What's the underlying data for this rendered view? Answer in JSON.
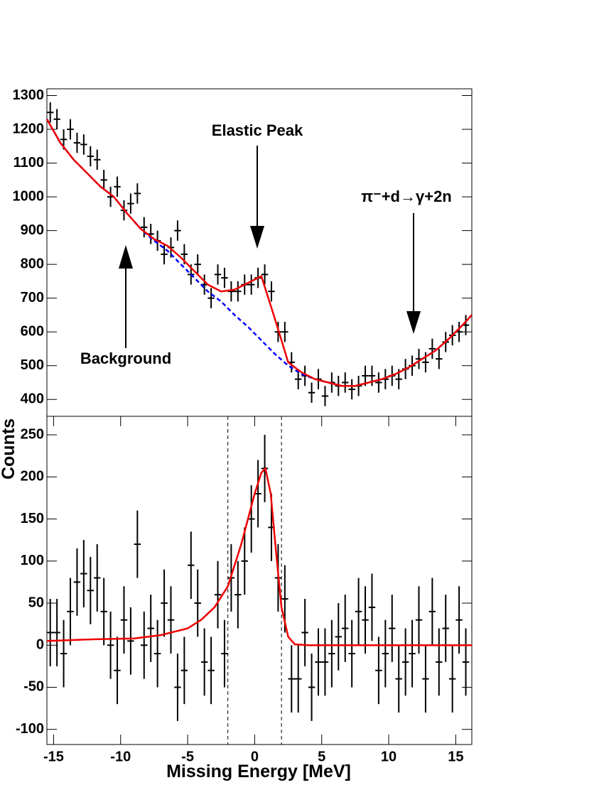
{
  "chart_data": [
    {
      "type": "scatter",
      "xlim": [
        -15.5,
        16.2
      ],
      "ylim": [
        350,
        1320
      ],
      "yticks": [
        400,
        500,
        600,
        700,
        800,
        900,
        1000,
        1100,
        1200,
        1300
      ],
      "x": [
        -15.25,
        -14.75,
        -14.25,
        -13.75,
        -13.25,
        -12.75,
        -12.25,
        -11.75,
        -11.25,
        -10.75,
        -10.25,
        -9.75,
        -9.25,
        -8.75,
        -8.25,
        -7.75,
        -7.25,
        -6.75,
        -6.25,
        -5.75,
        -5.25,
        -4.75,
        -4.25,
        -3.75,
        -3.25,
        -2.75,
        -2.25,
        -1.75,
        -1.25,
        -0.75,
        -0.25,
        0.25,
        0.75,
        1.25,
        1.75,
        2.25,
        2.75,
        3.25,
        3.75,
        4.25,
        4.75,
        5.25,
        5.75,
        6.25,
        6.75,
        7.25,
        7.75,
        8.25,
        8.75,
        9.25,
        9.75,
        10.25,
        10.75,
        11.25,
        11.75,
        12.25,
        12.75,
        13.25,
        13.75,
        14.25,
        14.75,
        15.25,
        15.75
      ],
      "values": [
        1250,
        1230,
        1170,
        1200,
        1160,
        1155,
        1120,
        1110,
        1050,
        1000,
        1030,
        960,
        980,
        1010,
        910,
        890,
        870,
        830,
        850,
        900,
        830,
        770,
        800,
        740,
        700,
        770,
        760,
        720,
        720,
        740,
        740,
        760,
        770,
        720,
        600,
        600,
        510,
        460,
        470,
        420,
        460,
        410,
        450,
        440,
        450,
        430,
        440,
        470,
        470,
        450,
        460,
        470,
        460,
        490,
        500,
        520,
        510,
        550,
        520,
        570,
        590,
        600,
        620
      ],
      "error": 30,
      "color": "#000000",
      "curves": [
        {
          "color": "#0000ff",
          "dashed": true,
          "x": [
            -15.5,
            -14.5,
            -13.5,
            -12.5,
            -11.5,
            -10.5,
            -9.5,
            -8.5,
            -7.5,
            -6.5,
            -5.5,
            -4.5,
            -3.5,
            -2.5,
            -1.5,
            -0.5,
            0.5,
            1.5,
            2.5,
            3.5,
            4.5,
            5.5,
            6.5,
            7.5,
            8.5,
            9.5,
            10.5,
            11.5,
            12.5,
            13.5,
            14.5,
            15.5,
            16.2
          ],
          "values": [
            1230,
            1160,
            1110,
            1070,
            1030,
            1000,
            950,
            905,
            870,
            840,
            800,
            760,
            720,
            690,
            650,
            615,
            575,
            535,
            500,
            475,
            460,
            450,
            440,
            440,
            450,
            460,
            475,
            495,
            520,
            545,
            580,
            620,
            650
          ]
        },
        {
          "color": "#ee0000",
          "dashed": false,
          "x": [
            -15.5,
            -14.5,
            -13.5,
            -12.5,
            -11.5,
            -10.5,
            -9.5,
            -8.5,
            -7.5,
            -6.5,
            -5.5,
            -4.5,
            -3.5,
            -2.5,
            -1.5,
            -0.5,
            0.5,
            1.5,
            2.5,
            3.5,
            4.5,
            5.5,
            6.5,
            7.5,
            8.5,
            9.5,
            10.5,
            11.5,
            12.5,
            13.5,
            14.5,
            15.5,
            16.2
          ],
          "values": [
            1230,
            1160,
            1110,
            1070,
            1030,
            1000,
            950,
            905,
            875,
            855,
            820,
            780,
            740,
            720,
            725,
            745,
            765,
            640,
            510,
            480,
            460,
            450,
            440,
            440,
            450,
            460,
            475,
            495,
            520,
            545,
            580,
            620,
            650
          ]
        }
      ],
      "annotations": [
        "Elastic Peak",
        "Background",
        "π⁻+d→γ+2n"
      ]
    },
    {
      "type": "scatter",
      "xlim": [
        -15.5,
        16.2
      ],
      "ylim": [
        -118,
        272
      ],
      "xticks": [
        -15,
        -10,
        -5,
        0,
        5,
        10,
        15
      ],
      "yticks": [
        -100,
        -50,
        0,
        50,
        100,
        150,
        200,
        250
      ],
      "x_label": "Missing Energy [MeV]",
      "y_label": "Counts",
      "x": [
        -15.25,
        -14.75,
        -14.25,
        -13.75,
        -13.25,
        -12.75,
        -12.25,
        -11.75,
        -11.25,
        -10.75,
        -10.25,
        -9.75,
        -9.25,
        -8.75,
        -8.25,
        -7.75,
        -7.25,
        -6.75,
        -6.25,
        -5.75,
        -5.25,
        -4.75,
        -4.25,
        -3.75,
        -3.25,
        -2.75,
        -2.25,
        -1.75,
        -1.25,
        -0.75,
        -0.25,
        0.25,
        0.75,
        1.25,
        1.75,
        2.25,
        2.75,
        3.25,
        3.75,
        4.25,
        4.75,
        5.25,
        5.75,
        6.25,
        6.75,
        7.25,
        7.75,
        8.25,
        8.75,
        9.25,
        9.75,
        10.25,
        10.75,
        11.25,
        11.75,
        12.25,
        12.75,
        13.25,
        13.75,
        14.25,
        14.75,
        15.25,
        15.75
      ],
      "values": [
        15,
        15,
        -10,
        40,
        75,
        85,
        65,
        80,
        40,
        0,
        -30,
        30,
        5,
        120,
        0,
        20,
        -10,
        50,
        30,
        -50,
        -30,
        95,
        50,
        -20,
        -30,
        60,
        -10,
        80,
        60,
        100,
        150,
        180,
        210,
        140,
        80,
        55,
        -40,
        -40,
        15,
        -50,
        -20,
        -20,
        -10,
        10,
        20,
        -10,
        40,
        30,
        45,
        -30,
        -10,
        20,
        -40,
        -20,
        -10,
        30,
        -40,
        40,
        -20,
        20,
        -40,
        30,
        -20
      ],
      "error": 40,
      "color": "#000000",
      "curves": [
        {
          "color": "#ee0000",
          "dashed": false,
          "x": [
            -15.5,
            -12,
            -9,
            -7,
            -5,
            -4,
            -3,
            -2,
            -1,
            0,
            0.5,
            0.8,
            1.2,
            1.6,
            2,
            2.5,
            3,
            4,
            8,
            12,
            16.2
          ],
          "values": [
            5,
            7,
            8,
            12,
            20,
            30,
            45,
            70,
            120,
            180,
            205,
            210,
            180,
            110,
            45,
            10,
            1,
            0,
            0,
            0,
            0
          ]
        }
      ],
      "cut_lines": [
        -2,
        2
      ]
    }
  ]
}
